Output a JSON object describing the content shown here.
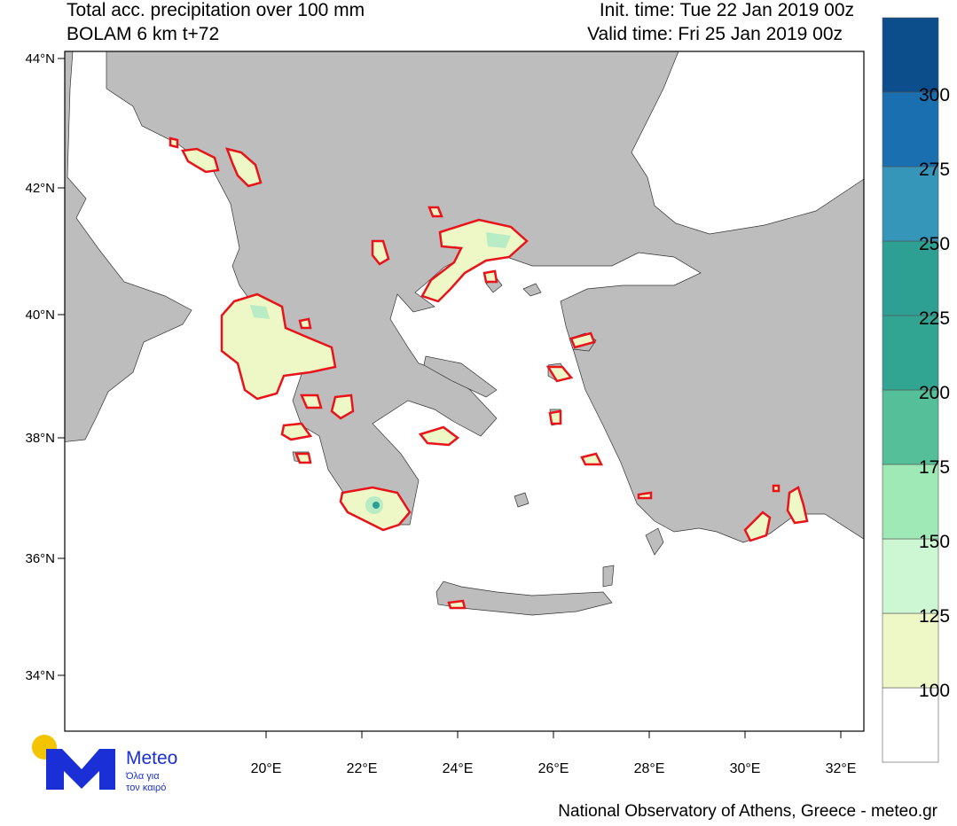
{
  "header": {
    "title": "Total acc. precipitation over 100 mm",
    "subtitle": "BOLAM 6 km t+72",
    "init_time": "Init. time: Tue 22 Jan 2019 00z",
    "valid_time": "Valid time: Fri 25 Jan 2019 00z"
  },
  "latitude_labels": [
    "44°N",
    "42°N",
    "40°N",
    "38°N",
    "36°N",
    "34°N"
  ],
  "longitude_labels": [
    "20°E",
    "22°E",
    "24°E",
    "26°E",
    "28°E",
    "30°E",
    "32°E"
  ],
  "colorbar": {
    "labels": [
      100,
      125,
      150,
      175,
      200,
      225,
      250,
      275,
      300
    ],
    "colors": [
      "#ffffff",
      "#eef7c6",
      "#cdf7d2",
      "#9fe9b6",
      "#55bf9a",
      "#32a592",
      "#2e9f93",
      "#3596ba",
      "#1a6fb0",
      "#0c4d8b"
    ]
  },
  "logo": {
    "name": "Meteo",
    "tagline_1": "Όλα για",
    "tagline_2": "τον καιρό"
  },
  "footer": "National Observatory of Athens, Greece - meteo.gr"
}
